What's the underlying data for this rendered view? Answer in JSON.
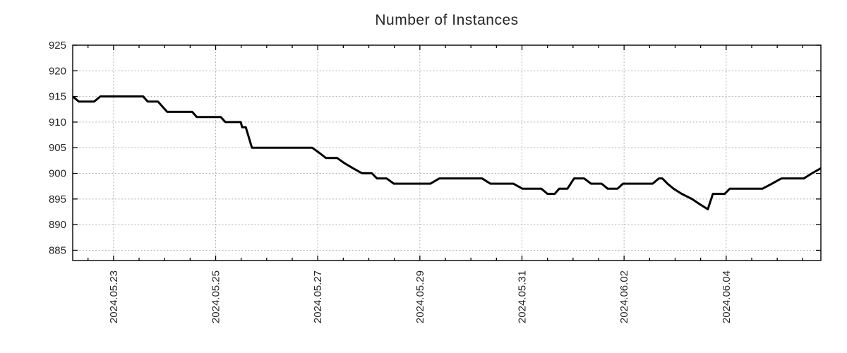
{
  "title": "Number of Instances",
  "style": {
    "background": "#ffffff",
    "line_color": "#000000",
    "grid_color": "#b0b0b0",
    "axis_color": "#000000",
    "text_color": "#262626"
  },
  "chart_data": {
    "type": "line",
    "title": "Number of Instances",
    "xlabel": "",
    "ylabel": "",
    "legend": false,
    "grid": true,
    "x_unit": "days from plot left edge (left edge ≈ 2024.05.22, right edge ≈ 2024.06.05)",
    "x_range": [
      0,
      14.655
    ],
    "y_range": [
      883,
      925
    ],
    "y_ticks": [
      885,
      890,
      895,
      900,
      905,
      910,
      915,
      920,
      925
    ],
    "x_major_ticks": [
      {
        "d": 0.8,
        "label": "2024.05.23"
      },
      {
        "d": 2.8,
        "label": "2024.05.25"
      },
      {
        "d": 4.8,
        "label": "2024.05.27"
      },
      {
        "d": 6.8,
        "label": "2024.05.29"
      },
      {
        "d": 8.8,
        "label": "2024.05.31"
      },
      {
        "d": 10.8,
        "label": "2024.06.02"
      },
      {
        "d": 12.8,
        "label": "2024.06.04"
      }
    ],
    "x_minor_tick_start": 0.3,
    "x_minor_tick_interval": 0.5,
    "series": [
      {
        "name": "instances",
        "color": "#000000",
        "points": [
          [
            0.0,
            915
          ],
          [
            0.12,
            914
          ],
          [
            0.42,
            914
          ],
          [
            0.54,
            915
          ],
          [
            1.38,
            915
          ],
          [
            1.47,
            914
          ],
          [
            1.67,
            914
          ],
          [
            1.76,
            913
          ],
          [
            1.85,
            912
          ],
          [
            2.34,
            912
          ],
          [
            2.43,
            911
          ],
          [
            2.9,
            911
          ],
          [
            2.99,
            910
          ],
          [
            3.29,
            910
          ],
          [
            3.32,
            909
          ],
          [
            3.39,
            909
          ],
          [
            3.51,
            905
          ],
          [
            4.69,
            905
          ],
          [
            4.83,
            904
          ],
          [
            4.96,
            903
          ],
          [
            5.18,
            903
          ],
          [
            5.32,
            902
          ],
          [
            5.49,
            901
          ],
          [
            5.67,
            900
          ],
          [
            5.86,
            900
          ],
          [
            5.96,
            899
          ],
          [
            6.15,
            899
          ],
          [
            6.29,
            898
          ],
          [
            7.01,
            898
          ],
          [
            7.18,
            899
          ],
          [
            8.02,
            899
          ],
          [
            8.18,
            898
          ],
          [
            8.63,
            898
          ],
          [
            8.81,
            897
          ],
          [
            9.18,
            897
          ],
          [
            9.3,
            896
          ],
          [
            9.44,
            896
          ],
          [
            9.53,
            897
          ],
          [
            9.69,
            897
          ],
          [
            9.82,
            899
          ],
          [
            10.02,
            899
          ],
          [
            10.15,
            898
          ],
          [
            10.36,
            898
          ],
          [
            10.48,
            897
          ],
          [
            10.67,
            897
          ],
          [
            10.78,
            898
          ],
          [
            11.36,
            898
          ],
          [
            11.48,
            899
          ],
          [
            11.55,
            899
          ],
          [
            11.65,
            898
          ],
          [
            11.77,
            897
          ],
          [
            11.93,
            896
          ],
          [
            12.13,
            895
          ],
          [
            12.28,
            894
          ],
          [
            12.44,
            893
          ],
          [
            12.54,
            896
          ],
          [
            12.77,
            896
          ],
          [
            12.87,
            897
          ],
          [
            13.51,
            897
          ],
          [
            13.7,
            898
          ],
          [
            13.88,
            899
          ],
          [
            14.32,
            899
          ],
          [
            14.48,
            900
          ],
          [
            14.655,
            901
          ]
        ]
      }
    ]
  }
}
